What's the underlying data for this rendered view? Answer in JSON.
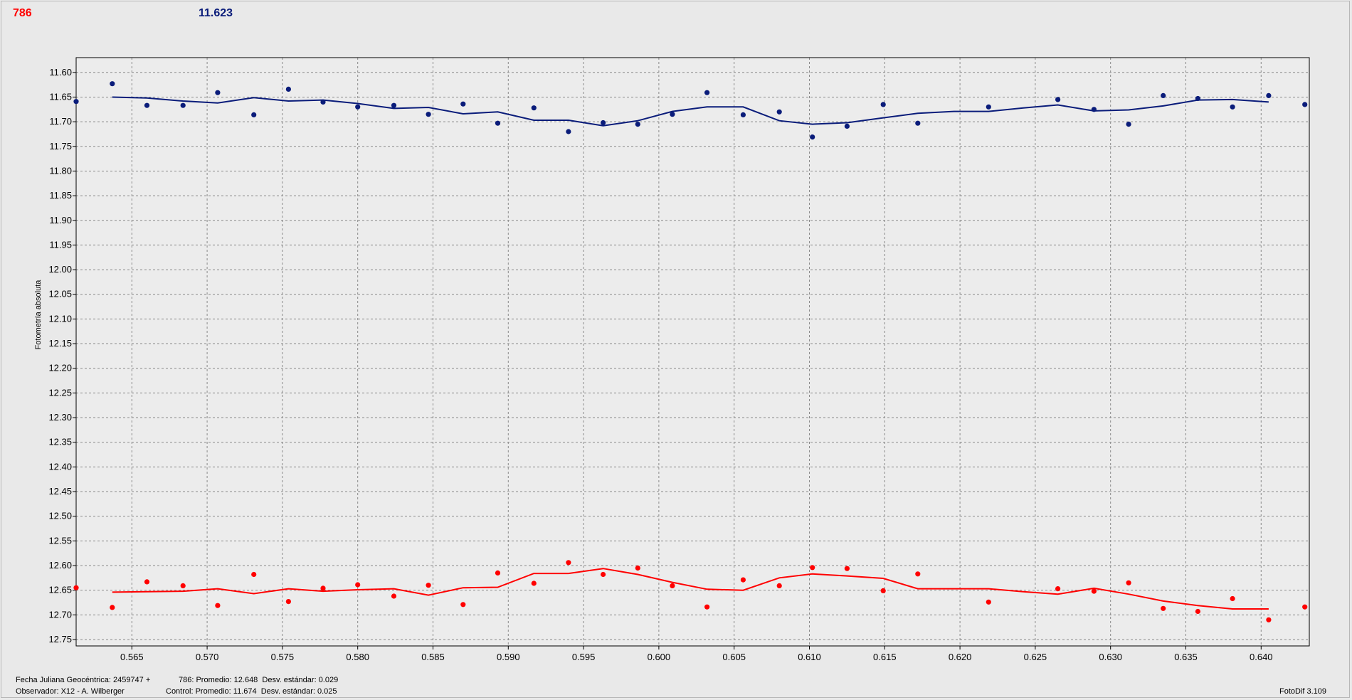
{
  "header": {
    "variable_label": "786",
    "control_value": "11.623"
  },
  "footer": {
    "date_label": "Fecha Juliana Geocéntrica: 2459747 +",
    "observer_label": "Observador: X12 - A. Wilberger",
    "variable_stats": "786: Promedio: 12.648  Desv. estándar: 0.029",
    "control_stats": "Control: Promedio: 11.674  Desv. estándar: 0.025",
    "software": "FotoDif 3.109"
  },
  "colors": {
    "control": "#0a1c7a",
    "variable": "#ff0000"
  },
  "chart_data": {
    "type": "scatter",
    "ylabel": "Fotometría absoluta",
    "xlim": [
      0.5613,
      0.6432
    ],
    "ylim": [
      11.57,
      12.763
    ],
    "y_inverted": true,
    "grid": true,
    "x_ticks": [
      "0.565",
      "0.570",
      "0.575",
      "0.580",
      "0.585",
      "0.590",
      "0.595",
      "0.600",
      "0.605",
      "0.610",
      "0.615",
      "0.620",
      "0.625",
      "0.630",
      "0.635",
      "0.640"
    ],
    "y_ticks": [
      "11.60",
      "11.65",
      "11.70",
      "11.75",
      "11.80",
      "11.85",
      "11.90",
      "11.95",
      "12.00",
      "12.05",
      "12.10",
      "12.15",
      "12.20",
      "12.25",
      "12.30",
      "12.35",
      "12.40",
      "12.45",
      "12.50",
      "12.55",
      "12.60",
      "12.65",
      "12.70",
      "12.75"
    ],
    "series": [
      {
        "name": "Control",
        "color": "#0a1c7a",
        "points": [
          [
            0.5613,
            11.659
          ],
          [
            0.5637,
            11.623
          ],
          [
            0.566,
            11.667
          ],
          [
            0.5684,
            11.667
          ],
          [
            0.5707,
            11.641
          ],
          [
            0.5731,
            11.686
          ],
          [
            0.5754,
            11.634
          ],
          [
            0.5777,
            11.66
          ],
          [
            0.58,
            11.67
          ],
          [
            0.5824,
            11.667
          ],
          [
            0.5847,
            11.685
          ],
          [
            0.587,
            11.664
          ],
          [
            0.5893,
            11.703
          ],
          [
            0.5917,
            11.672
          ],
          [
            0.594,
            11.72
          ],
          [
            0.5963,
            11.702
          ],
          [
            0.5986,
            11.705
          ],
          [
            0.6009,
            11.685
          ],
          [
            0.6032,
            11.641
          ],
          [
            0.6056,
            11.686
          ],
          [
            0.608,
            11.68
          ],
          [
            0.6102,
            11.731
          ],
          [
            0.6125,
            11.709
          ],
          [
            0.6149,
            11.665
          ],
          [
            0.6172,
            11.703
          ],
          [
            0.6219,
            11.67
          ],
          [
            0.6265,
            11.655
          ],
          [
            0.6289,
            11.675
          ],
          [
            0.6312,
            11.705
          ],
          [
            0.6335,
            11.647
          ],
          [
            0.6358,
            11.653
          ],
          [
            0.6381,
            11.67
          ],
          [
            0.6405,
            11.647
          ],
          [
            0.6429,
            11.665
          ]
        ],
        "trend": [
          [
            0.5637,
            11.65
          ],
          [
            0.566,
            11.652
          ],
          [
            0.5684,
            11.658
          ],
          [
            0.5707,
            11.662
          ],
          [
            0.5731,
            11.651
          ],
          [
            0.5754,
            11.658
          ],
          [
            0.5777,
            11.656
          ],
          [
            0.58,
            11.663
          ],
          [
            0.5824,
            11.673
          ],
          [
            0.5847,
            11.671
          ],
          [
            0.587,
            11.684
          ],
          [
            0.5893,
            11.68
          ],
          [
            0.5917,
            11.697
          ],
          [
            0.594,
            11.697
          ],
          [
            0.5963,
            11.708
          ],
          [
            0.5986,
            11.698
          ],
          [
            0.6009,
            11.679
          ],
          [
            0.6032,
            11.67
          ],
          [
            0.6056,
            11.67
          ],
          [
            0.608,
            11.698
          ],
          [
            0.6102,
            11.705
          ],
          [
            0.6125,
            11.702
          ],
          [
            0.6149,
            11.692
          ],
          [
            0.6172,
            11.683
          ],
          [
            0.6196,
            11.679
          ],
          [
            0.6219,
            11.679
          ],
          [
            0.6242,
            11.672
          ],
          [
            0.6265,
            11.666
          ],
          [
            0.6289,
            11.678
          ],
          [
            0.6312,
            11.676
          ],
          [
            0.6335,
            11.668
          ],
          [
            0.6358,
            11.656
          ],
          [
            0.6381,
            11.655
          ],
          [
            0.6405,
            11.66
          ]
        ]
      },
      {
        "name": "786",
        "color": "#ff0000",
        "points": [
          [
            0.5613,
            12.645
          ],
          [
            0.5637,
            12.685
          ],
          [
            0.566,
            12.633
          ],
          [
            0.5684,
            12.641
          ],
          [
            0.5707,
            12.681
          ],
          [
            0.5731,
            12.618
          ],
          [
            0.5754,
            12.673
          ],
          [
            0.5777,
            12.646
          ],
          [
            0.58,
            12.639
          ],
          [
            0.5824,
            12.662
          ],
          [
            0.5847,
            12.64
          ],
          [
            0.587,
            12.679
          ],
          [
            0.5893,
            12.615
          ],
          [
            0.5917,
            12.636
          ],
          [
            0.594,
            12.594
          ],
          [
            0.5963,
            12.618
          ],
          [
            0.5986,
            12.605
          ],
          [
            0.6009,
            12.641
          ],
          [
            0.6032,
            12.684
          ],
          [
            0.6056,
            12.629
          ],
          [
            0.608,
            12.641
          ],
          [
            0.6102,
            12.604
          ],
          [
            0.6125,
            12.606
          ],
          [
            0.6149,
            12.651
          ],
          [
            0.6172,
            12.617
          ],
          [
            0.6219,
            12.674
          ],
          [
            0.6265,
            12.647
          ],
          [
            0.6289,
            12.652
          ],
          [
            0.6312,
            12.635
          ],
          [
            0.6335,
            12.687
          ],
          [
            0.6358,
            12.693
          ],
          [
            0.6381,
            12.667
          ],
          [
            0.6405,
            12.71
          ],
          [
            0.6429,
            12.684
          ]
        ],
        "trend": [
          [
            0.5637,
            12.654
          ],
          [
            0.5684,
            12.652
          ],
          [
            0.5707,
            12.647
          ],
          [
            0.5731,
            12.657
          ],
          [
            0.5754,
            12.647
          ],
          [
            0.5777,
            12.652
          ],
          [
            0.58,
            12.649
          ],
          [
            0.5824,
            12.647
          ],
          [
            0.5847,
            12.66
          ],
          [
            0.587,
            12.645
          ],
          [
            0.5893,
            12.644
          ],
          [
            0.5917,
            12.616
          ],
          [
            0.594,
            12.616
          ],
          [
            0.5963,
            12.606
          ],
          [
            0.5986,
            12.618
          ],
          [
            0.6009,
            12.634
          ],
          [
            0.6032,
            12.648
          ],
          [
            0.6056,
            12.65
          ],
          [
            0.608,
            12.625
          ],
          [
            0.6102,
            12.617
          ],
          [
            0.6125,
            12.621
          ],
          [
            0.6149,
            12.626
          ],
          [
            0.6172,
            12.647
          ],
          [
            0.6196,
            12.647
          ],
          [
            0.6219,
            12.647
          ],
          [
            0.6242,
            12.653
          ],
          [
            0.6265,
            12.658
          ],
          [
            0.6289,
            12.646
          ],
          [
            0.6312,
            12.658
          ],
          [
            0.6335,
            12.672
          ],
          [
            0.6358,
            12.681
          ],
          [
            0.6381,
            12.688
          ],
          [
            0.6405,
            12.688
          ]
        ]
      }
    ]
  }
}
